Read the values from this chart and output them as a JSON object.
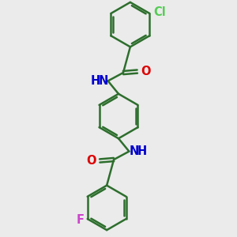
{
  "bg_color": "#ebebeb",
  "bond_color": "#2d6e2d",
  "atom_colors": {
    "O": "#dd0000",
    "N": "#0000cc",
    "Cl": "#55cc55",
    "F": "#cc44cc"
  },
  "bond_width": 1.8,
  "font_size": 10.5,
  "ring_r": 0.95
}
